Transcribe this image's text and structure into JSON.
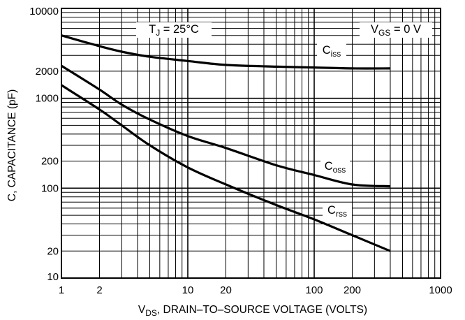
{
  "chart_data": {
    "type": "line",
    "title": "",
    "xlabel": {
      "main": "V",
      "sub": "DS",
      "rest": ", DRAIN–TO–SOURCE VOLTAGE (VOLTS)"
    },
    "ylabel": "C, CAPACITANCE (pF)",
    "x_scale": "log",
    "y_scale": "log",
    "xlim": [
      1,
      1000
    ],
    "ylim": [
      10,
      10000
    ],
    "x_ticks": [
      1,
      2,
      10,
      20,
      100,
      200,
      1000
    ],
    "x_tick_labels": [
      "1",
      "2",
      "10",
      "20",
      "100",
      "200",
      "1000"
    ],
    "y_ticks": [
      10,
      20,
      100,
      200,
      1000,
      2000,
      10000
    ],
    "y_tick_labels": [
      "10",
      "20",
      "100",
      "200",
      "1000",
      "2000",
      "10000"
    ],
    "grid": true,
    "annotations": {
      "tj": {
        "main": "T",
        "sub": "J",
        "rest": " = 25°C"
      },
      "vgs": {
        "main": "V",
        "sub": "GS",
        "rest": " = 0 V"
      }
    },
    "series": [
      {
        "name": "Ciss",
        "label_main": "C",
        "label_sub": "iss",
        "x": [
          1,
          2,
          3,
          5,
          10,
          20,
          50,
          100,
          200,
          400
        ],
        "y": [
          5000,
          3800,
          3300,
          2900,
          2600,
          2350,
          2250,
          2200,
          2150,
          2150
        ]
      },
      {
        "name": "Coss",
        "label_main": "C",
        "label_sub": "oss",
        "x": [
          1,
          2,
          3,
          5,
          10,
          20,
          50,
          100,
          200,
          400
        ],
        "y": [
          2300,
          1250,
          850,
          580,
          380,
          280,
          180,
          140,
          110,
          105
        ]
      },
      {
        "name": "Crss",
        "label_main": "C",
        "label_sub": "rss",
        "x": [
          1,
          2,
          3,
          5,
          10,
          20,
          50,
          100,
          200,
          400
        ],
        "y": [
          1400,
          750,
          500,
          300,
          170,
          110,
          65,
          45,
          30,
          20
        ]
      }
    ]
  }
}
